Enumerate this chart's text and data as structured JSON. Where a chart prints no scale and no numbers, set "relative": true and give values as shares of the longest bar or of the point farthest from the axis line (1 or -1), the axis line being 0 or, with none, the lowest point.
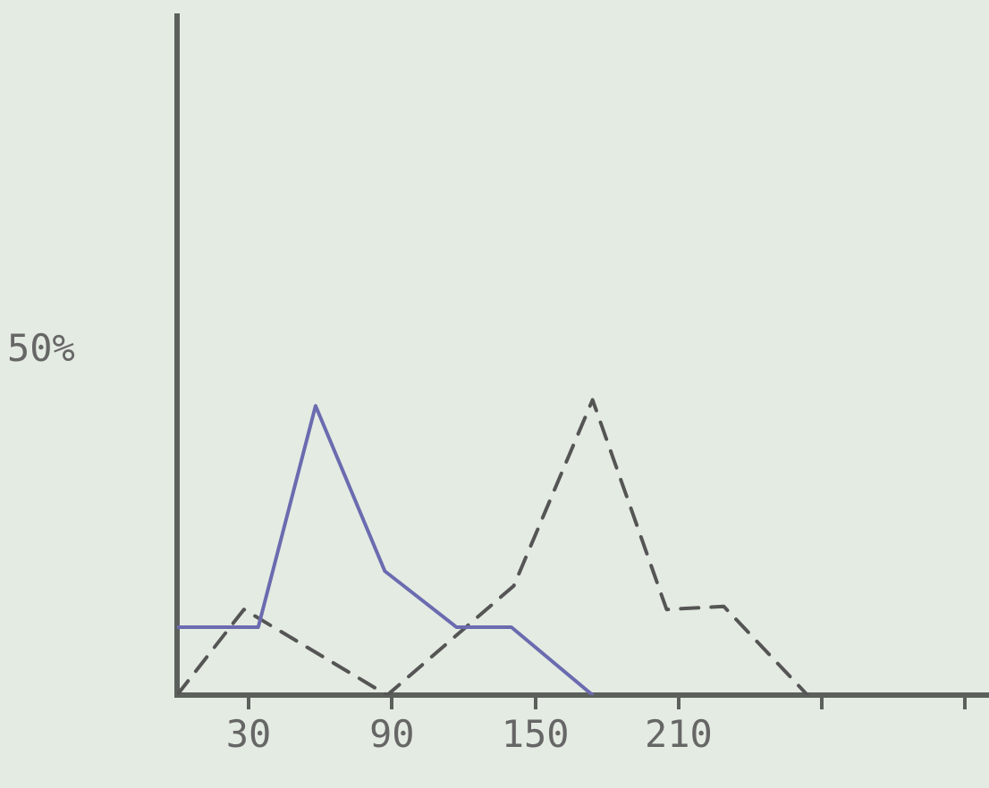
{
  "chart_data": {
    "type": "line",
    "relative": true,
    "xlim": [
      0,
      340
    ],
    "xticks": [
      30,
      90,
      150,
      210,
      {
        "value": 270,
        "label": null
      },
      {
        "value": 330,
        "label": null
      }
    ],
    "annotations": [
      "50%"
    ],
    "grid": false,
    "legend": false,
    "marker": "none",
    "series": [
      {
        "color": "#6b6bb0",
        "line_style": "solid",
        "x": [
          0,
          34,
          58,
          87,
          117,
          140,
          174
        ],
        "values": [
          0.23,
          0.23,
          0.98,
          0.42,
          0.23,
          0.23,
          0
        ]
      },
      {
        "color": "#555555",
        "line_style": "dashed",
        "x": [
          0,
          28,
          88,
          141,
          174,
          205,
          229,
          264
        ],
        "values": [
          0,
          0.29,
          0,
          0.37,
          1,
          0.29,
          0.3,
          0
        ]
      }
    ]
  }
}
